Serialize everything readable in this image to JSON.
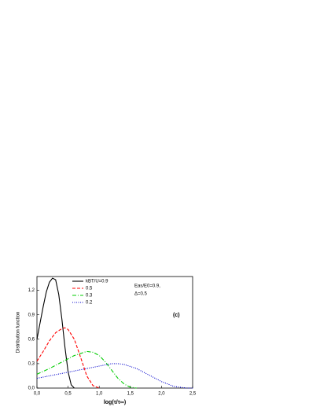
{
  "chart_data": {
    "type": "line",
    "xlabel": "log(τ/τ∞)",
    "ylabel": "Distribution function",
    "annotations": [
      "Eas/E0=0.9,",
      "Δ=0.5",
      "(c)"
    ],
    "xlim": [
      0,
      2.5
    ],
    "ylim": [
      0,
      1.37
    ],
    "xticks": [
      {
        "value": 0,
        "label": "0,0"
      },
      {
        "value": 0.5,
        "label": "0,5"
      },
      {
        "value": 1.0,
        "label": "1,0"
      },
      {
        "value": 1.5,
        "label": "1,5"
      },
      {
        "value": 2.0,
        "label": "2,0"
      },
      {
        "value": 2.5,
        "label": "2,5"
      }
    ],
    "yticks": [
      {
        "value": 0,
        "label": "0,0"
      },
      {
        "value": 0.3,
        "label": "0,3"
      },
      {
        "value": 0.6,
        "label": "0,6"
      },
      {
        "value": 0.9,
        "label": "0,9"
      },
      {
        "value": 1.2,
        "label": "1,2"
      }
    ],
    "series": [
      {
        "name": "kBT/U=0.9",
        "color": "#000000",
        "dash": "none",
        "x": [
          0,
          0.05,
          0.1,
          0.15,
          0.2,
          0.25,
          0.3,
          0.35,
          0.4,
          0.45,
          0.5,
          0.55,
          0.6
        ],
        "values": [
          0.6,
          0.8,
          1.0,
          1.18,
          1.3,
          1.35,
          1.33,
          1.15,
          0.85,
          0.5,
          0.2,
          0.04,
          0
        ]
      },
      {
        "name": "0.5",
        "color": "#ff0000",
        "dash": "4 2",
        "x": [
          0,
          0.1,
          0.2,
          0.3,
          0.4,
          0.45,
          0.5,
          0.6,
          0.7,
          0.8,
          0.9,
          1.0
        ],
        "values": [
          0.33,
          0.45,
          0.58,
          0.68,
          0.73,
          0.74,
          0.72,
          0.6,
          0.38,
          0.15,
          0.03,
          0
        ]
      },
      {
        "name": "0.3",
        "color": "#00cc00",
        "dash": "5 2 1 2",
        "x": [
          0,
          0.2,
          0.4,
          0.6,
          0.8,
          0.9,
          1.0,
          1.1,
          1.2,
          1.3,
          1.4,
          1.5,
          1.6
        ],
        "values": [
          0.17,
          0.24,
          0.32,
          0.4,
          0.45,
          0.44,
          0.4,
          0.32,
          0.22,
          0.12,
          0.05,
          0.01,
          0
        ]
      },
      {
        "name": "0.2",
        "color": "#0000cc",
        "dash": "1 1.5",
        "x": [
          0,
          0.2,
          0.4,
          0.6,
          0.8,
          1.0,
          1.2,
          1.3,
          1.4,
          1.6,
          1.8,
          2.0,
          2.2,
          2.4,
          2.5
        ],
        "values": [
          0.12,
          0.15,
          0.18,
          0.21,
          0.24,
          0.27,
          0.3,
          0.3,
          0.29,
          0.24,
          0.16,
          0.08,
          0.02,
          0,
          0
        ]
      }
    ]
  }
}
